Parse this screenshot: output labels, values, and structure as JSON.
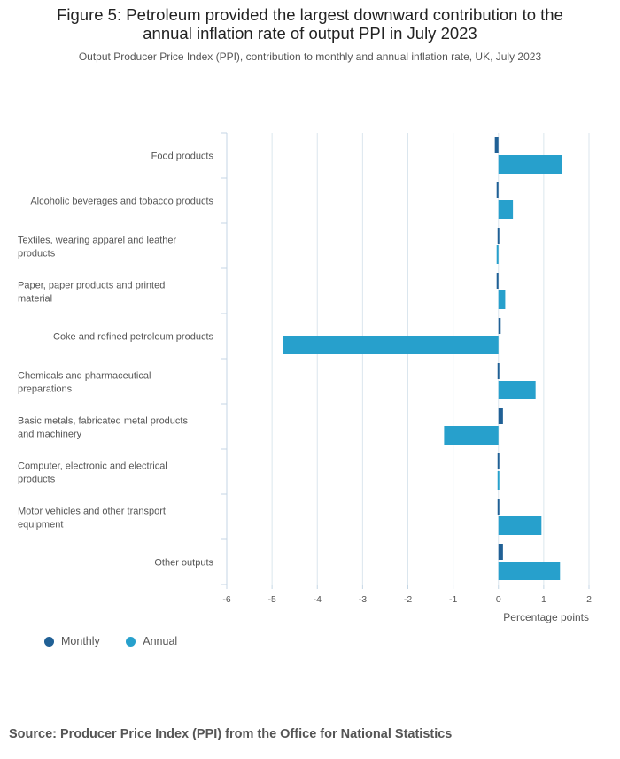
{
  "title_line1": "Figure 5: Petroleum provided the largest downward contribution to the",
  "title_line2": "annual inflation rate of output PPI in July 2023",
  "subtitle": "Output Producer Price Index (PPI), contribution to monthly and annual inflation rate, UK, July 2023",
  "source": "Source: Producer Price Index (PPI) from the Office for National Statistics",
  "colors": {
    "monthly": "#206095",
    "annual": "#27a0cc",
    "grid": "#dbe6ee"
  },
  "chart_data": {
    "type": "bar",
    "orientation": "horizontal",
    "xlabel": "Percentage points",
    "xlim": [
      -6,
      2
    ],
    "xticks": [
      "-6",
      "-5",
      "-4",
      "-3",
      "-2",
      "-1",
      "0",
      "1",
      "2"
    ],
    "legend_position": "bottom-left",
    "categories": [
      [
        "Food products"
      ],
      [
        "Alcoholic beverages and tobacco products"
      ],
      [
        "Textiles, wearing apparel and leather",
        "products"
      ],
      [
        "Paper, paper products and printed",
        "material"
      ],
      [
        "Coke and refined petroleum products"
      ],
      [
        "Chemicals and pharmaceutical",
        "preparations"
      ],
      [
        "Basic metals, fabricated metal products",
        "and machinery"
      ],
      [
        "Computer, electronic and electrical",
        "products"
      ],
      [
        "Motor vehicles and other transport",
        "equipment"
      ],
      [
        "Other outputs"
      ]
    ],
    "series": [
      {
        "name": "Monthly",
        "values": [
          -0.08,
          -0.04,
          0.0,
          -0.04,
          0.05,
          -0.02,
          0.1,
          0.0,
          -0.03,
          0.1
        ]
      },
      {
        "name": "Annual",
        "values": [
          1.4,
          0.32,
          -0.04,
          0.15,
          -4.75,
          0.82,
          -1.2,
          0.03,
          0.95,
          1.36
        ]
      }
    ]
  }
}
